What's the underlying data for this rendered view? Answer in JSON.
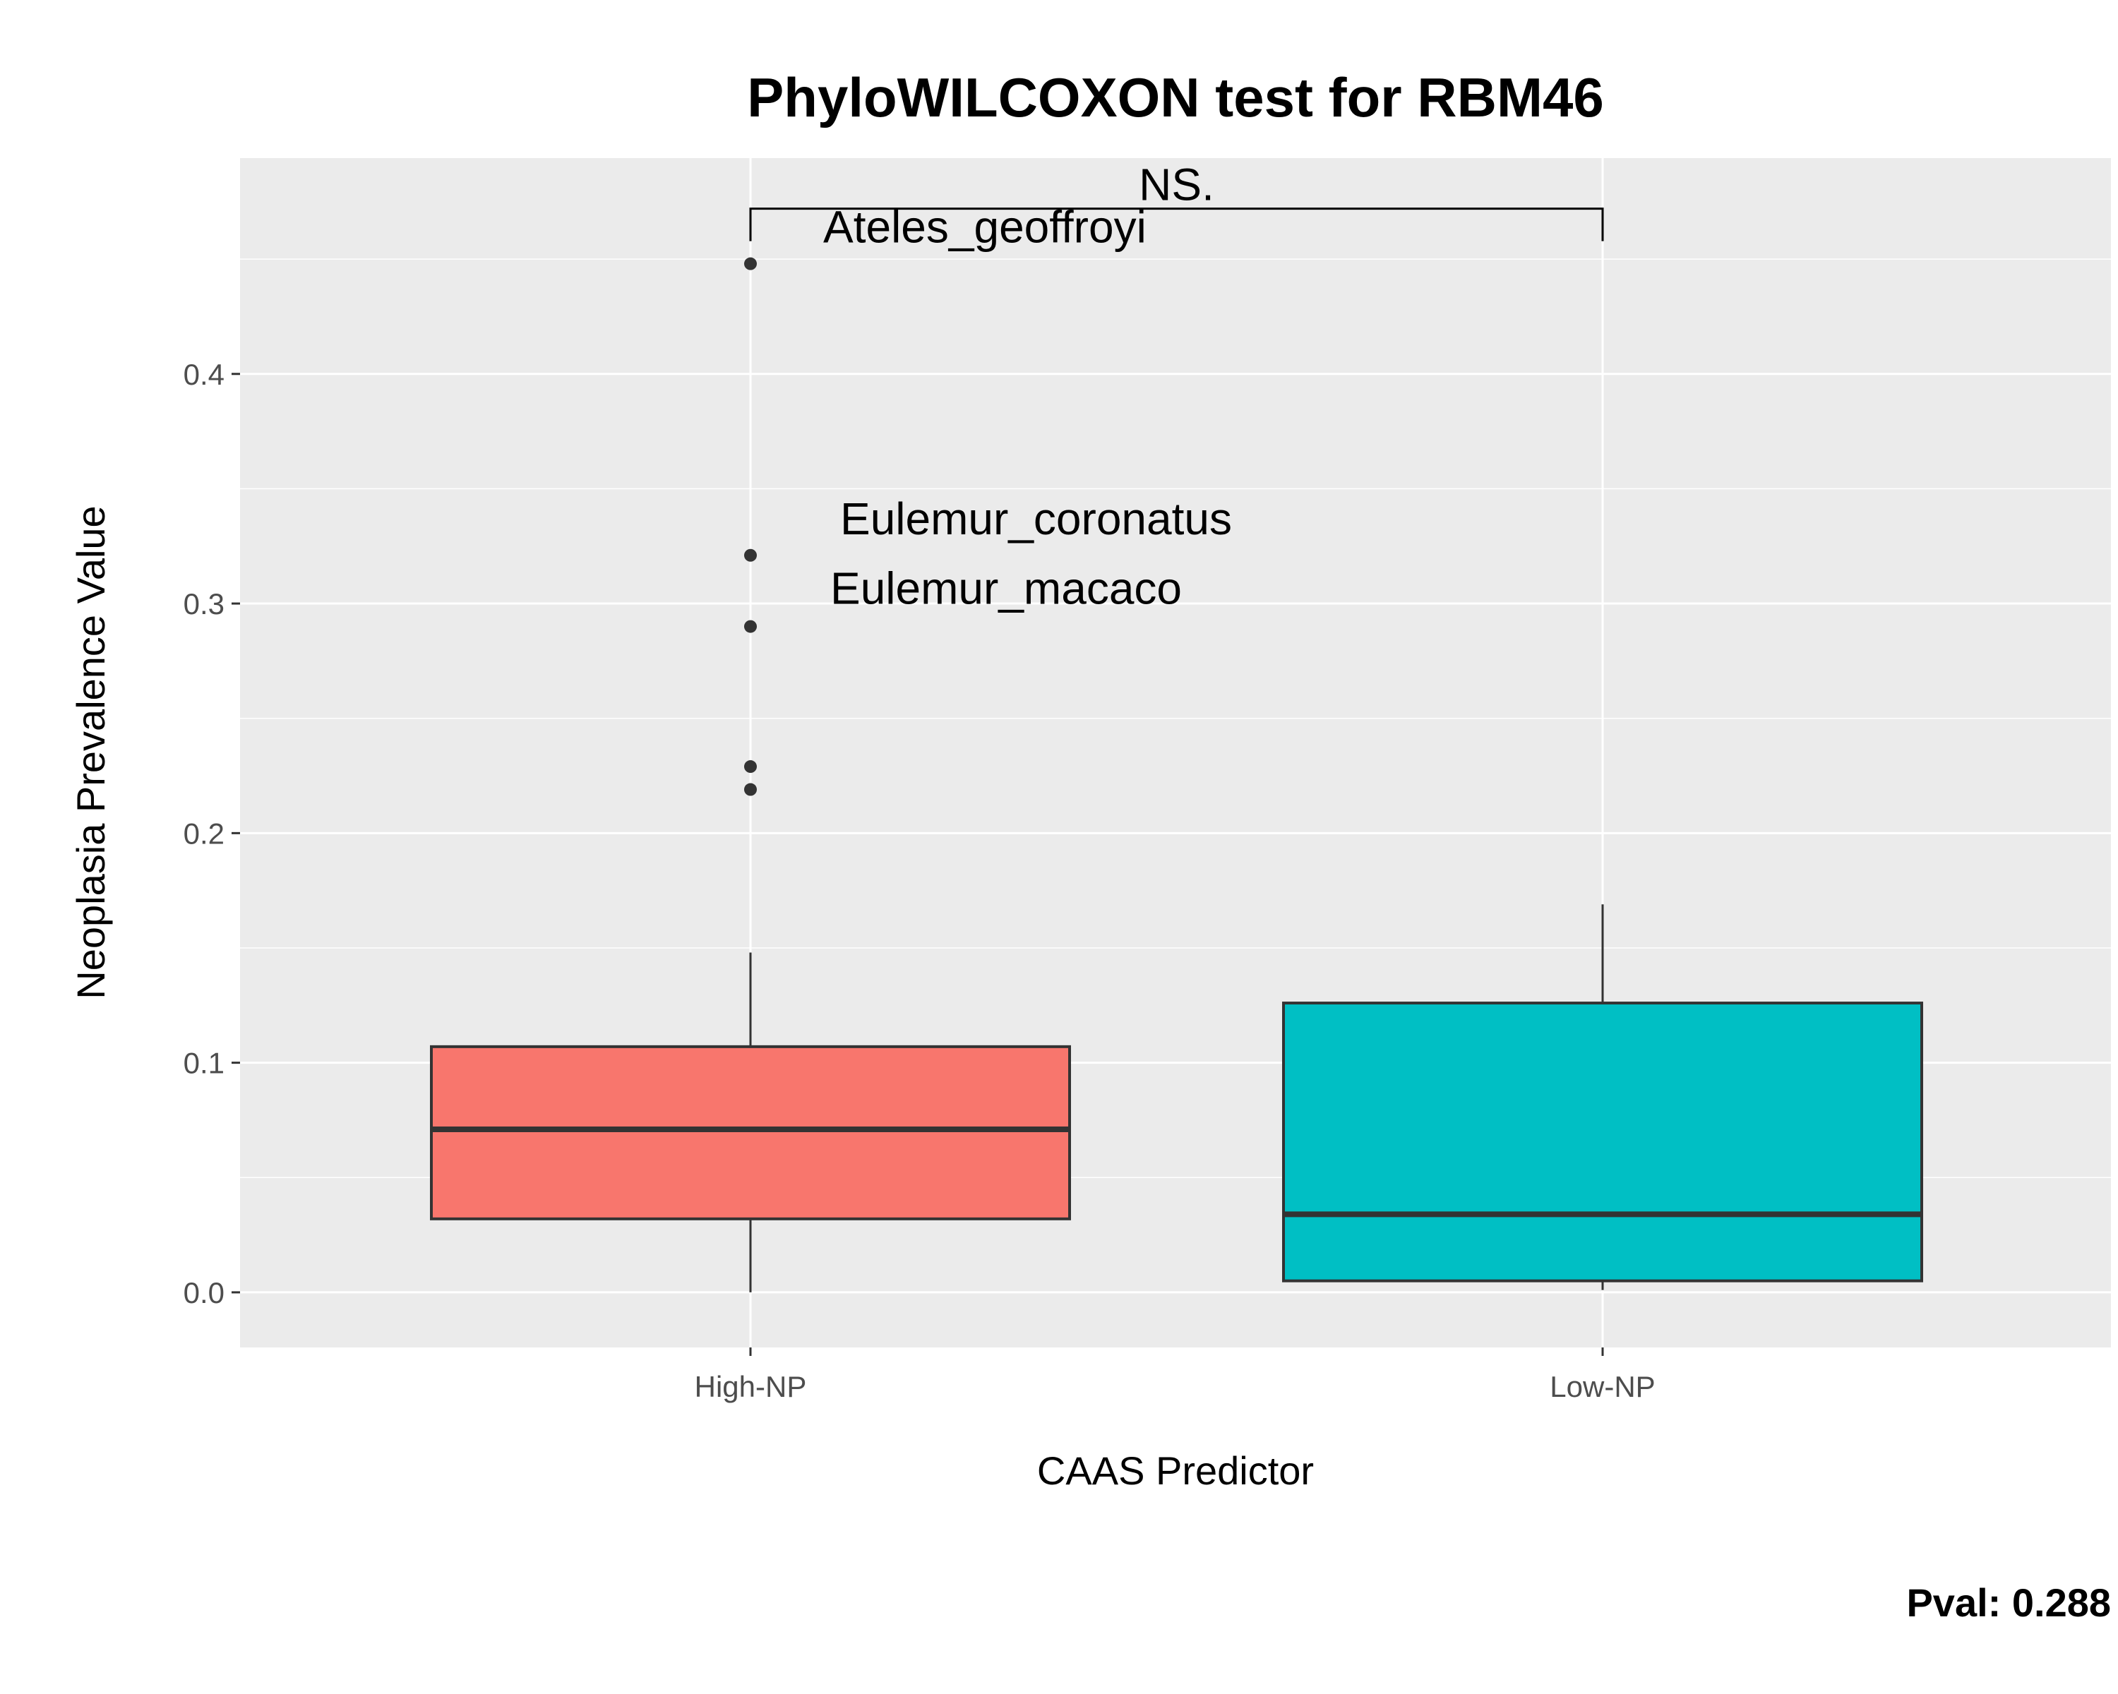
{
  "chart_data": {
    "type": "box",
    "title": "PhyloWILCOXON test for RBM46",
    "xlabel": "CAAS Predictor",
    "ylabel": "Neoplasia Prevalence Value",
    "categories": [
      "High-NP",
      "Low-NP"
    ],
    "ylim": [
      -0.024,
      0.494
    ],
    "y_ticks": [
      0.0,
      0.1,
      0.2,
      0.3,
      0.4
    ],
    "y_tick_labels": [
      "0.0",
      "0.1",
      "0.2",
      "0.3",
      "0.4"
    ],
    "grid": true,
    "legend": "none",
    "colors": {
      "High-NP": "#F8766D",
      "Low-NP": "#00BFC4"
    },
    "boxes": [
      {
        "category": "High-NP",
        "whisker_low": 0.0,
        "q1": 0.032,
        "median": 0.071,
        "q3": 0.107,
        "whisker_high": 0.148,
        "outliers": [
          0.448,
          0.321,
          0.29,
          0.229,
          0.219
        ]
      },
      {
        "category": "Low-NP",
        "whisker_low": 0.001,
        "q1": 0.005,
        "median": 0.034,
        "q3": 0.126,
        "whisker_high": 0.169,
        "outliers": []
      }
    ],
    "point_labels": [
      {
        "text": "Ateles_geoffroyi",
        "category": "High-NP",
        "value": 0.448
      },
      {
        "text": "Eulemur_coronatus",
        "category": "High-NP",
        "value": 0.321
      },
      {
        "text": "Eulemur_macaco",
        "category": "High-NP",
        "value": 0.29
      }
    ],
    "significance": {
      "label": "NS.",
      "y": 0.472,
      "from": "High-NP",
      "to": "Low-NP"
    },
    "footer": "Pval:  0.288"
  }
}
